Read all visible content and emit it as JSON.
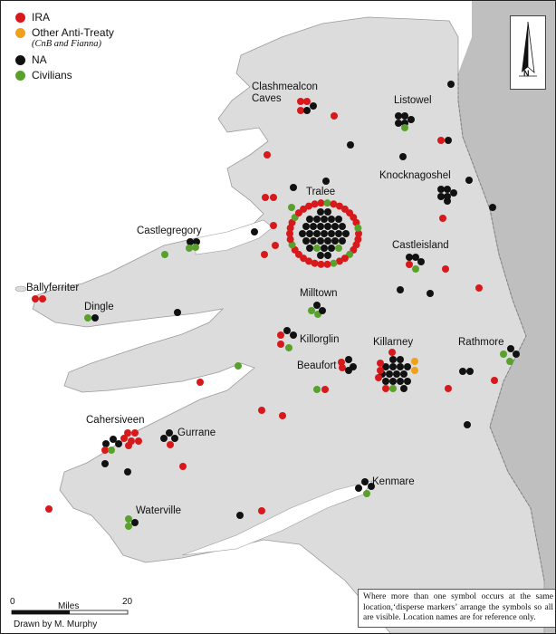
{
  "legend": {
    "items": [
      {
        "label": "IRA",
        "color": "#d7191c"
      },
      {
        "label": "Other Anti-Treaty",
        "color": "#f0a019",
        "sublabel": "(CnB and Fianna)"
      },
      {
        "label": "NA",
        "color": "#111111"
      },
      {
        "label": "Civilians",
        "color": "#5aa02c"
      }
    ]
  },
  "places": [
    {
      "name": "Clashmealcon",
      "key": "clashmealcon"
    },
    {
      "name": "Caves",
      "key": "caves"
    },
    {
      "name": "Listowel",
      "key": "listowel"
    },
    {
      "name": "Knocknagoshel",
      "key": "knocknagoshel"
    },
    {
      "name": "Tralee",
      "key": "tralee"
    },
    {
      "name": "Castlegregory",
      "key": "castlegregory"
    },
    {
      "name": "Castleisland",
      "key": "castleisland"
    },
    {
      "name": "Ballyferriter",
      "key": "ballyferriter"
    },
    {
      "name": "Dingle",
      "key": "dingle"
    },
    {
      "name": "Milltown",
      "key": "milltown"
    },
    {
      "name": "Killorglin",
      "key": "killorglin"
    },
    {
      "name": "Killarney",
      "key": "killarney"
    },
    {
      "name": "Rathmore",
      "key": "rathmore"
    },
    {
      "name": "Beaufort",
      "key": "beaufort"
    },
    {
      "name": "Cahersiveen",
      "key": "cahersiveen"
    },
    {
      "name": "Gurrane",
      "key": "gurrane"
    },
    {
      "name": "Kenmare",
      "key": "kenmare"
    },
    {
      "name": "Waterville",
      "key": "waterville"
    }
  ],
  "scale": {
    "start": "0",
    "end": "20",
    "unit": "Miles"
  },
  "credit": "Drawn by M. Murphy",
  "north_label": "N",
  "note": "Where more than one symbol occurs at the same location,‘disperse markers’ arrange the symbols so all are visible. Location names are for reference only.",
  "colors": {
    "sea": "#ffffff",
    "land": "#dcdcdc",
    "border": "#a9a9a9",
    "ira": "#d7191c",
    "anti_treaty": "#f0a019",
    "na": "#111111",
    "civilian": "#5aa02c"
  }
}
